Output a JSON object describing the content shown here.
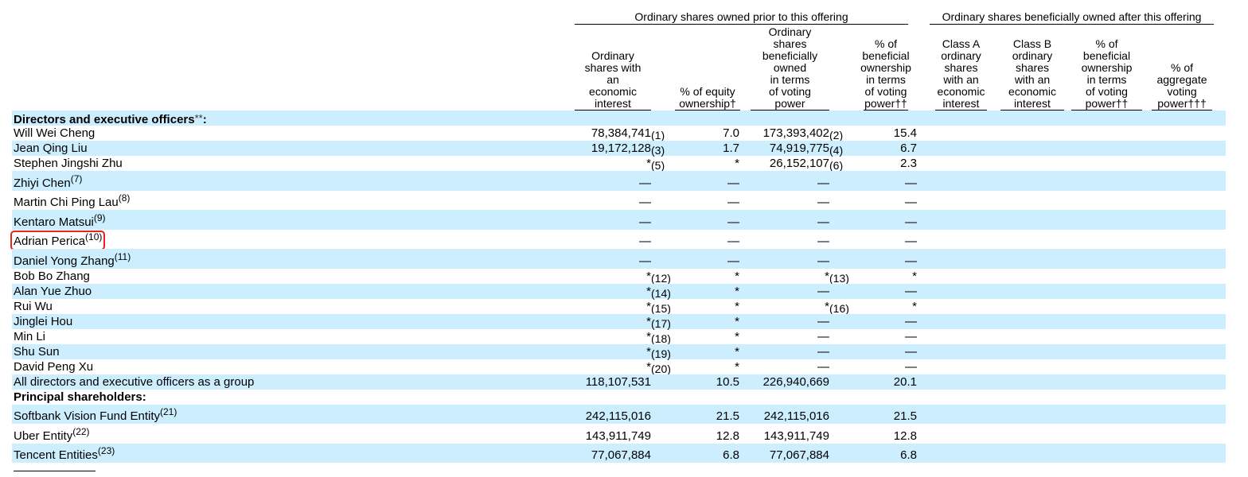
{
  "table": {
    "groups": [
      {
        "label": "Ordinary shares owned prior to this offering"
      },
      {
        "label": "Ordinary shares beneficially owned after this offering"
      }
    ],
    "columns": [
      [
        "Ordinary",
        "shares with",
        "an",
        "economic",
        "interest"
      ],
      [
        "% of equity",
        "ownership†"
      ],
      [
        "Ordinary",
        "shares",
        "beneficially",
        "owned",
        "in terms",
        "of voting",
        "power"
      ],
      [
        "% of",
        "beneficial",
        "ownership",
        "in terms",
        "of voting",
        "power††"
      ],
      [
        "Class A",
        "ordinary",
        "shares",
        "with an",
        "economic",
        "interest"
      ],
      [
        "Class B",
        "ordinary",
        "shares",
        "with an",
        "economic",
        "interest"
      ],
      [
        "% of",
        "beneficial",
        "ownership",
        "in terms",
        "of voting",
        "power††"
      ],
      [
        "% of",
        "aggregate",
        "voting",
        "power†††"
      ]
    ],
    "rows": [
      {
        "section": "Directors and executive officers",
        "mark": "**",
        "suffix": ":"
      },
      {
        "name": "Will Wei Cheng",
        "cells": [
          {
            "text": "78,384,741",
            "note": "(1)"
          },
          {
            "text": "7.0"
          },
          {
            "text": "173,393,402",
            "note": "(2)"
          },
          {
            "text": "15.4"
          }
        ]
      },
      {
        "name": "Jean Qing Liu",
        "cells": [
          {
            "text": "19,172,128",
            "note": "(3)"
          },
          {
            "text": "1.7"
          },
          {
            "text": "74,919,775",
            "note": "(4)"
          },
          {
            "text": "6.7"
          }
        ]
      },
      {
        "name": "Stephen Jingshi Zhu",
        "cells": [
          {
            "text": "*",
            "note": "(5)"
          },
          {
            "text": "*"
          },
          {
            "text": "26,152,107",
            "note": "(6)"
          },
          {
            "text": "2.3"
          }
        ]
      },
      {
        "name": "Zhiyi Chen",
        "note": "(7)",
        "cells": [
          {
            "text": "—"
          },
          {
            "text": "—"
          },
          {
            "text": "—"
          },
          {
            "text": "—"
          }
        ]
      },
      {
        "name": "Martin Chi Ping Lau",
        "note": "(8)",
        "cells": [
          {
            "text": "—"
          },
          {
            "text": "—"
          },
          {
            "text": "—"
          },
          {
            "text": "—"
          }
        ]
      },
      {
        "name": "Kentaro Matsui",
        "note": "(9)",
        "cells": [
          {
            "text": "—"
          },
          {
            "text": "—"
          },
          {
            "text": "—"
          },
          {
            "text": "—"
          }
        ]
      },
      {
        "name": "Adrian Perica",
        "note": "(10)",
        "highlighted": true,
        "cells": [
          {
            "text": "—"
          },
          {
            "text": "—"
          },
          {
            "text": "—"
          },
          {
            "text": "—"
          }
        ]
      },
      {
        "name": "Daniel Yong Zhang",
        "note": "(11)",
        "cells": [
          {
            "text": "—"
          },
          {
            "text": "—"
          },
          {
            "text": "—"
          },
          {
            "text": "—"
          }
        ]
      },
      {
        "name": "Bob Bo Zhang",
        "cells": [
          {
            "text": "*",
            "note": "(12)"
          },
          {
            "text": "*"
          },
          {
            "text": "*",
            "note": "(13)"
          },
          {
            "text": "*"
          }
        ]
      },
      {
        "name": "Alan Yue Zhuo",
        "cells": [
          {
            "text": "*",
            "note": "(14)"
          },
          {
            "text": "*"
          },
          {
            "text": "—"
          },
          {
            "text": "—"
          }
        ]
      },
      {
        "name": "Rui Wu",
        "cells": [
          {
            "text": "*",
            "note": "(15)"
          },
          {
            "text": "*"
          },
          {
            "text": "*",
            "note": "(16)"
          },
          {
            "text": "*"
          }
        ]
      },
      {
        "name": "Jinglei Hou",
        "cells": [
          {
            "text": "*",
            "note": "(17)"
          },
          {
            "text": "*"
          },
          {
            "text": "—"
          },
          {
            "text": "—"
          }
        ]
      },
      {
        "name": "Min Li",
        "cells": [
          {
            "text": "*",
            "note": "(18)"
          },
          {
            "text": "*"
          },
          {
            "text": "—"
          },
          {
            "text": "—"
          }
        ]
      },
      {
        "name": "Shu Sun",
        "cells": [
          {
            "text": "*",
            "note": "(19)"
          },
          {
            "text": "*"
          },
          {
            "text": "—"
          },
          {
            "text": "—"
          }
        ]
      },
      {
        "name": "David Peng Xu",
        "cells": [
          {
            "text": "*",
            "note": "(20)"
          },
          {
            "text": "*"
          },
          {
            "text": "—"
          },
          {
            "text": "—"
          }
        ]
      },
      {
        "name": "All directors and executive officers as a group",
        "cells": [
          {
            "text": "118,107,531"
          },
          {
            "text": "10.5"
          },
          {
            "text": "226,940,669"
          },
          {
            "text": "20.1"
          }
        ]
      },
      {
        "section": "Principal shareholders",
        "suffix": ":"
      },
      {
        "name": "Softbank Vision Fund Entity",
        "note": "(21)",
        "cells": [
          {
            "text": "242,115,016"
          },
          {
            "text": "21.5"
          },
          {
            "text": "242,115,016"
          },
          {
            "text": "21.5"
          }
        ]
      },
      {
        "name": "Uber Entity",
        "note": "(22)",
        "cells": [
          {
            "text": "143,911,749"
          },
          {
            "text": "12.8"
          },
          {
            "text": "143,911,749"
          },
          {
            "text": "12.8"
          }
        ]
      },
      {
        "name": "Tencent Entities",
        "note": "(23)",
        "cells": [
          {
            "text": "77,067,884"
          },
          {
            "text": "6.8"
          },
          {
            "text": "77,067,884"
          },
          {
            "text": "6.8"
          }
        ]
      }
    ]
  }
}
